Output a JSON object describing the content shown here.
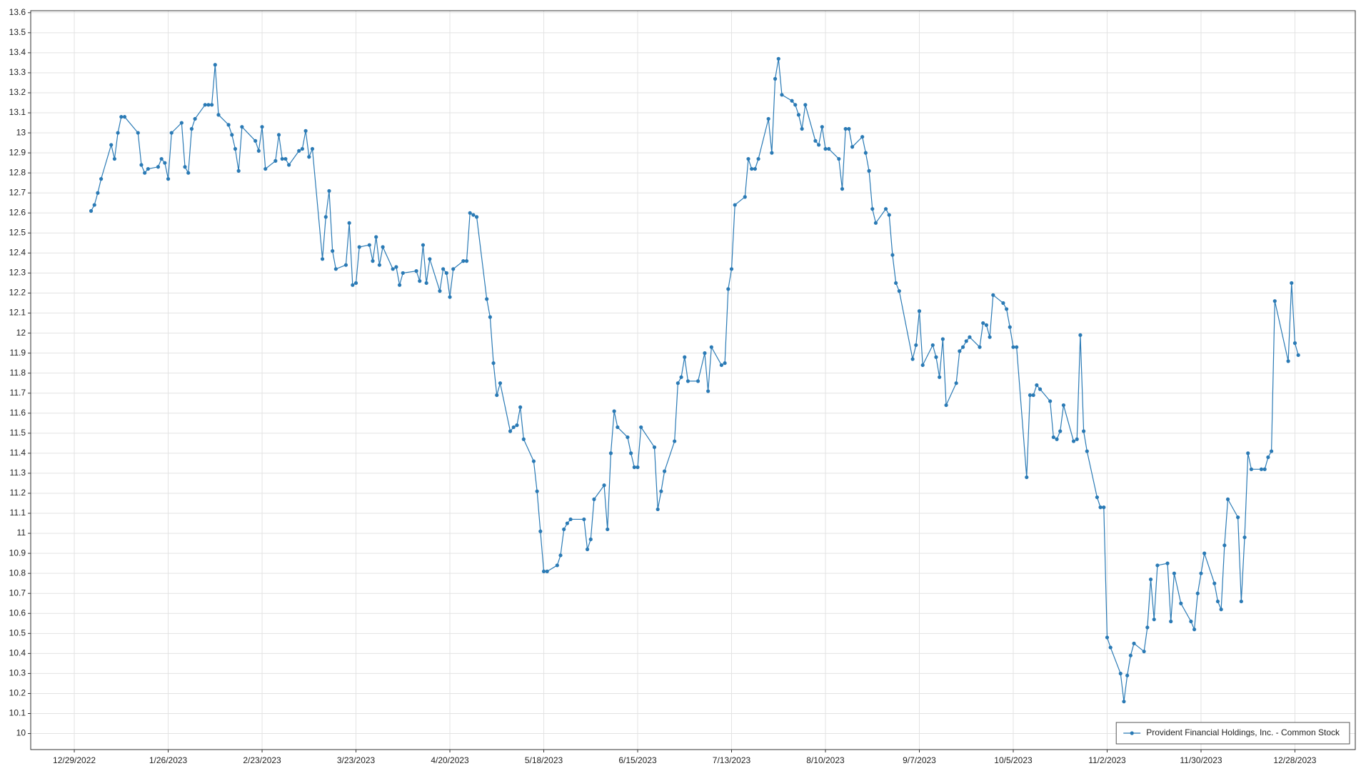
{
  "chart_data": {
    "type": "line",
    "x": [
      "2023-01-03",
      "2023-01-04",
      "2023-01-05",
      "2023-01-06",
      "2023-01-09",
      "2023-01-10",
      "2023-01-11",
      "2023-01-12",
      "2023-01-13",
      "2023-01-17",
      "2023-01-18",
      "2023-01-19",
      "2023-01-20",
      "2023-01-23",
      "2023-01-24",
      "2023-01-25",
      "2023-01-26",
      "2023-01-27",
      "2023-01-30",
      "2023-01-31",
      "2023-02-01",
      "2023-02-02",
      "2023-02-03",
      "2023-02-06",
      "2023-02-07",
      "2023-02-08",
      "2023-02-09",
      "2023-02-10",
      "2023-02-13",
      "2023-02-14",
      "2023-02-15",
      "2023-02-16",
      "2023-02-17",
      "2023-02-21",
      "2023-02-22",
      "2023-02-23",
      "2023-02-24",
      "2023-02-27",
      "2023-02-28",
      "2023-03-01",
      "2023-03-02",
      "2023-03-03",
      "2023-03-06",
      "2023-03-07",
      "2023-03-08",
      "2023-03-09",
      "2023-03-10",
      "2023-03-13",
      "2023-03-14",
      "2023-03-15",
      "2023-03-16",
      "2023-03-17",
      "2023-03-20",
      "2023-03-21",
      "2023-03-22",
      "2023-03-23",
      "2023-03-24",
      "2023-03-27",
      "2023-03-28",
      "2023-03-29",
      "2023-03-30",
      "2023-03-31",
      "2023-04-03",
      "2023-04-04",
      "2023-04-05",
      "2023-04-06",
      "2023-04-10",
      "2023-04-11",
      "2023-04-12",
      "2023-04-13",
      "2023-04-14",
      "2023-04-17",
      "2023-04-18",
      "2023-04-19",
      "2023-04-20",
      "2023-04-21",
      "2023-04-24",
      "2023-04-25",
      "2023-04-26",
      "2023-04-27",
      "2023-04-28",
      "2023-05-01",
      "2023-05-02",
      "2023-05-03",
      "2023-05-04",
      "2023-05-05",
      "2023-05-08",
      "2023-05-09",
      "2023-05-10",
      "2023-05-11",
      "2023-05-12",
      "2023-05-15",
      "2023-05-16",
      "2023-05-17",
      "2023-05-18",
      "2023-05-19",
      "2023-05-22",
      "2023-05-23",
      "2023-05-24",
      "2023-05-25",
      "2023-05-26",
      "2023-05-30",
      "2023-05-31",
      "2023-06-01",
      "2023-06-02",
      "2023-06-05",
      "2023-06-06",
      "2023-06-07",
      "2023-06-08",
      "2023-06-09",
      "2023-06-12",
      "2023-06-13",
      "2023-06-14",
      "2023-06-15",
      "2023-06-16",
      "2023-06-20",
      "2023-06-21",
      "2023-06-22",
      "2023-06-23",
      "2023-06-26",
      "2023-06-27",
      "2023-06-28",
      "2023-06-29",
      "2023-06-30",
      "2023-07-03",
      "2023-07-05",
      "2023-07-06",
      "2023-07-07",
      "2023-07-10",
      "2023-07-11",
      "2023-07-12",
      "2023-07-13",
      "2023-07-14",
      "2023-07-17",
      "2023-07-18",
      "2023-07-19",
      "2023-07-20",
      "2023-07-21",
      "2023-07-24",
      "2023-07-25",
      "2023-07-26",
      "2023-07-27",
      "2023-07-28",
      "2023-07-31",
      "2023-08-01",
      "2023-08-02",
      "2023-08-03",
      "2023-08-04",
      "2023-08-07",
      "2023-08-08",
      "2023-08-09",
      "2023-08-10",
      "2023-08-11",
      "2023-08-14",
      "2023-08-15",
      "2023-08-16",
      "2023-08-17",
      "2023-08-18",
      "2023-08-21",
      "2023-08-22",
      "2023-08-23",
      "2023-08-24",
      "2023-08-25",
      "2023-08-28",
      "2023-08-29",
      "2023-08-30",
      "2023-08-31",
      "2023-09-01",
      "2023-09-05",
      "2023-09-06",
      "2023-09-07",
      "2023-09-08",
      "2023-09-11",
      "2023-09-12",
      "2023-09-13",
      "2023-09-14",
      "2023-09-15",
      "2023-09-18",
      "2023-09-19",
      "2023-09-20",
      "2023-09-21",
      "2023-09-22",
      "2023-09-25",
      "2023-09-26",
      "2023-09-27",
      "2023-09-28",
      "2023-09-29",
      "2023-10-02",
      "2023-10-03",
      "2023-10-04",
      "2023-10-05",
      "2023-10-06",
      "2023-10-09",
      "2023-10-10",
      "2023-10-11",
      "2023-10-12",
      "2023-10-13",
      "2023-10-16",
      "2023-10-17",
      "2023-10-18",
      "2023-10-19",
      "2023-10-20",
      "2023-10-23",
      "2023-10-24",
      "2023-10-25",
      "2023-10-26",
      "2023-10-27",
      "2023-10-30",
      "2023-10-31",
      "2023-11-01",
      "2023-11-02",
      "2023-11-03",
      "2023-11-06",
      "2023-11-07",
      "2023-11-08",
      "2023-11-09",
      "2023-11-10",
      "2023-11-13",
      "2023-11-14",
      "2023-11-15",
      "2023-11-16",
      "2023-11-17",
      "2023-11-20",
      "2023-11-21",
      "2023-11-22",
      "2023-11-24",
      "2023-11-27",
      "2023-11-28",
      "2023-11-29",
      "2023-11-30",
      "2023-12-01",
      "2023-12-04",
      "2023-12-05",
      "2023-12-06",
      "2023-12-07",
      "2023-12-08",
      "2023-12-11",
      "2023-12-12",
      "2023-12-13",
      "2023-12-14",
      "2023-12-15",
      "2023-12-18",
      "2023-12-19",
      "2023-12-20",
      "2023-12-21",
      "2023-12-22",
      "2023-12-26",
      "2023-12-27",
      "2023-12-28",
      "2023-12-29"
    ],
    "series": [
      {
        "name": "Provident Financial Holdings, Inc. - Common Stock",
        "color": "#2a7ab5",
        "values": [
          12.61,
          12.64,
          12.7,
          12.77,
          12.94,
          12.87,
          13.0,
          13.08,
          13.08,
          13.0,
          12.84,
          12.8,
          12.82,
          12.83,
          12.87,
          12.85,
          12.77,
          13.0,
          13.05,
          12.83,
          12.8,
          13.02,
          13.07,
          13.14,
          13.14,
          13.14,
          13.34,
          13.09,
          13.04,
          12.99,
          12.92,
          12.81,
          13.03,
          12.96,
          12.91,
          13.03,
          12.82,
          12.86,
          12.99,
          12.87,
          12.87,
          12.84,
          12.91,
          12.92,
          13.01,
          12.88,
          12.92,
          12.37,
          12.58,
          12.71,
          12.41,
          12.32,
          12.34,
          12.55,
          12.24,
          12.25,
          12.43,
          12.44,
          12.36,
          12.48,
          12.34,
          12.43,
          12.32,
          12.33,
          12.24,
          12.3,
          12.31,
          12.26,
          12.44,
          12.25,
          12.37,
          12.21,
          12.32,
          12.3,
          12.18,
          12.32,
          12.36,
          12.36,
          12.6,
          12.59,
          12.58,
          12.17,
          12.08,
          11.85,
          11.69,
          11.75,
          11.51,
          11.53,
          11.54,
          11.63,
          11.47,
          11.36,
          11.21,
          11.01,
          10.81,
          10.81,
          10.84,
          10.89,
          11.02,
          11.05,
          11.07,
          11.07,
          10.92,
          10.97,
          11.17,
          11.24,
          11.02,
          11.4,
          11.61,
          11.53,
          11.48,
          11.4,
          11.33,
          11.33,
          11.53,
          11.43,
          11.12,
          11.21,
          11.31,
          11.46,
          11.75,
          11.78,
          11.88,
          11.76,
          11.76,
          11.9,
          11.71,
          11.93,
          11.84,
          11.85,
          12.22,
          12.32,
          12.64,
          12.68,
          12.87,
          12.82,
          12.82,
          12.87,
          13.07,
          12.9,
          13.27,
          13.37,
          13.19,
          13.16,
          13.14,
          13.09,
          13.02,
          13.14,
          12.96,
          12.94,
          13.03,
          12.92,
          12.92,
          12.87,
          12.72,
          13.02,
          13.02,
          12.93,
          12.98,
          12.9,
          12.81,
          12.62,
          12.55,
          12.62,
          12.59,
          12.39,
          12.25,
          12.21,
          11.87,
          11.94,
          12.11,
          11.84,
          11.94,
          11.88,
          11.78,
          11.97,
          11.64,
          11.75,
          11.91,
          11.93,
          11.96,
          11.98,
          11.93,
          12.05,
          12.04,
          11.98,
          12.19,
          12.15,
          12.12,
          12.03,
          11.93,
          11.93,
          11.28,
          11.69,
          11.69,
          11.74,
          11.72,
          11.66,
          11.48,
          11.47,
          11.51,
          11.64,
          11.46,
          11.47,
          11.99,
          11.51,
          11.41,
          11.18,
          11.13,
          11.13,
          10.48,
          10.43,
          10.3,
          10.16,
          10.29,
          10.39,
          10.45,
          10.41,
          10.53,
          10.77,
          10.57,
          10.84,
          10.85,
          10.56,
          10.8,
          10.65,
          10.56,
          10.52,
          10.7,
          10.8,
          10.9,
          10.75,
          10.66,
          10.62,
          10.94,
          11.17,
          11.08,
          10.66,
          10.98,
          11.4,
          11.32,
          11.32,
          11.32,
          11.38,
          11.41,
          12.16,
          11.86,
          12.25,
          11.95,
          11.89
        ]
      }
    ],
    "xlim": [
      "2022-12-16",
      "2024-01-15"
    ],
    "xticks": [
      {
        "value": "2022-12-29",
        "label": "12/29/2022"
      },
      {
        "value": "2023-01-26",
        "label": "1/26/2023"
      },
      {
        "value": "2023-02-23",
        "label": "2/23/2023"
      },
      {
        "value": "2023-03-23",
        "label": "3/23/2023"
      },
      {
        "value": "2023-04-20",
        "label": "4/20/2023"
      },
      {
        "value": "2023-05-18",
        "label": "5/18/2023"
      },
      {
        "value": "2023-06-15",
        "label": "6/15/2023"
      },
      {
        "value": "2023-07-13",
        "label": "7/13/2023"
      },
      {
        "value": "2023-08-10",
        "label": "8/10/2023"
      },
      {
        "value": "2023-09-07",
        "label": "9/7/2023"
      },
      {
        "value": "2023-10-05",
        "label": "10/5/2023"
      },
      {
        "value": "2023-11-02",
        "label": "11/2/2023"
      },
      {
        "value": "2023-11-30",
        "label": "11/30/2023"
      },
      {
        "value": "2023-12-28",
        "label": "12/28/2023"
      }
    ],
    "ylim": [
      9.92,
      13.61
    ],
    "yticks": [
      10,
      10.1,
      10.2,
      10.3,
      10.4,
      10.5,
      10.6,
      10.7,
      10.8,
      10.9,
      11,
      11.1,
      11.2,
      11.3,
      11.4,
      11.5,
      11.6,
      11.7,
      11.8,
      11.9,
      12,
      12.1,
      12.2,
      12.3,
      12.4,
      12.5,
      12.6,
      12.7,
      12.8,
      12.9,
      13,
      13.1,
      13.2,
      13.3,
      13.4,
      13.5,
      13.6
    ],
    "grid": true,
    "legend": "lower right"
  }
}
